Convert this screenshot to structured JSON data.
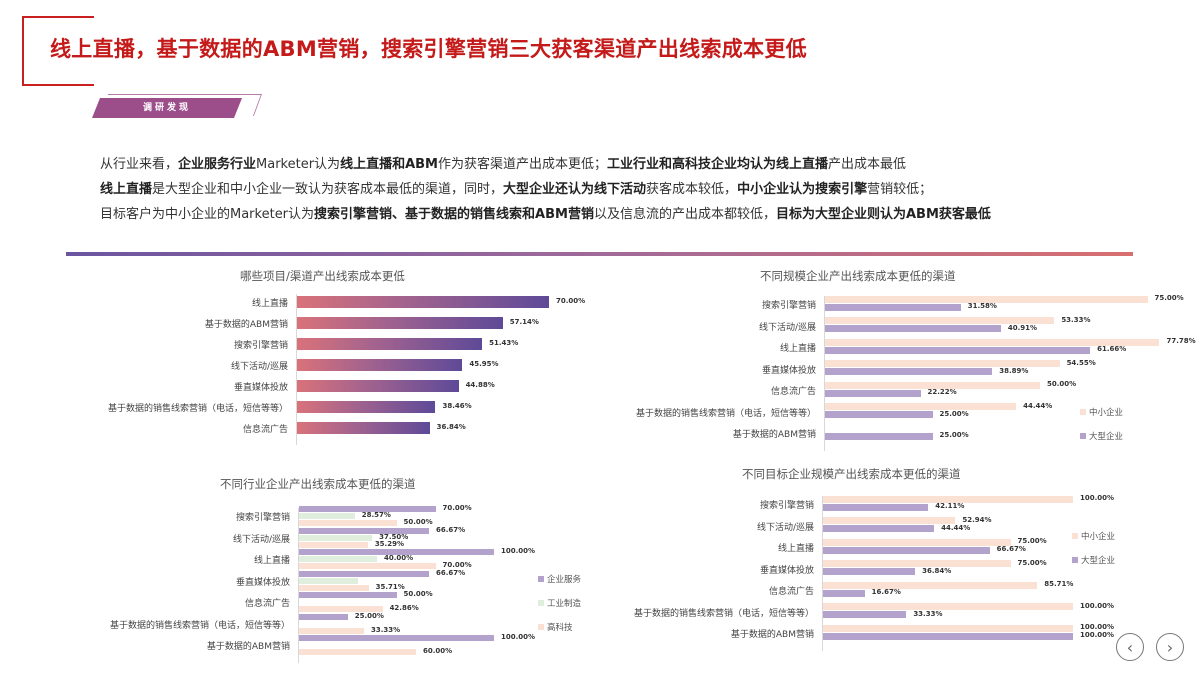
{
  "page": {
    "title": "线上直播，基于数据的ABM营销，搜索引擎营销三大获客渠道产出线索成本更低",
    "tag": "调研发现",
    "summary": [
      [
        {
          "t": "从行业来看，",
          "b": false
        },
        {
          "t": "企业服务行业",
          "b": true
        },
        {
          "t": "Marketer认为",
          "b": false
        },
        {
          "t": "线上直播和ABM",
          "b": true
        },
        {
          "t": "作为获客渠道产出成本更低；",
          "b": false
        },
        {
          "t": "工业行业和高科技企业均认为线上直播",
          "b": true
        },
        {
          "t": "产出成本最低",
          "b": false
        }
      ],
      [
        {
          "t": "线上直播",
          "b": true
        },
        {
          "t": "是大型企业和中小企业一致认为获客成本最低的渠道，同时，",
          "b": false
        },
        {
          "t": "大型企业还认为线下活动",
          "b": true
        },
        {
          "t": "获客成本较低，",
          "b": false
        },
        {
          "t": "中小企业认为搜索引擎",
          "b": true
        },
        {
          "t": "营销较低；",
          "b": false
        }
      ],
      [
        {
          "t": "目标客户为中小企业的Marketer认为",
          "b": false
        },
        {
          "t": "搜索引擎营销、基于数据的销售线索和ABM营销",
          "b": true
        },
        {
          "t": "以及信息流的产出成本都较低，",
          "b": false
        },
        {
          "t": "目标为大型企业则认为ABM获客最低",
          "b": true
        }
      ]
    ],
    "nav": {
      "prev": "‹",
      "next": "›"
    }
  },
  "colors": {
    "title_red": "#c41a1a",
    "tag_purple": "#9c4e8b",
    "gradient_start": "#d9727a",
    "gradient_end": "#5e4a98",
    "large_enterprise": "#b3a3cc",
    "sme": "#fbe0d4",
    "enterprise_service": "#b3a3cc",
    "industrial": "#dfeedd",
    "hightech": "#fbe0d4"
  },
  "chart_data": [
    {
      "id": "overall",
      "type": "bar",
      "orientation": "horizontal",
      "title": "哪些项目/渠道产出线索成本更低",
      "categories": [
        "线上直播",
        "基于数据的ABM营销",
        "搜索引擎营销",
        "线下活动/巡展",
        "垂直媒体投放",
        "基于数据的销售线索营销（电话，短信等等）",
        "信息流广告"
      ],
      "series": [
        {
          "name": "占比",
          "values": [
            70.0,
            57.14,
            51.43,
            45.95,
            44.88,
            38.46,
            36.84
          ],
          "labels": [
            "70.00%",
            "57.14%",
            "51.43%",
            "45.95%",
            "44.88%",
            "38.46%",
            "36.84%"
          ]
        }
      ],
      "xlim": [
        0,
        100
      ],
      "grid": false,
      "legend": null
    },
    {
      "id": "by_size",
      "type": "bar",
      "orientation": "horizontal",
      "title": "不同规模企业产出线索成本更低的渠道",
      "categories": [
        "搜索引擎营销",
        "线下活动/巡展",
        "线上直播",
        "垂直媒体投放",
        "信息流广告",
        "基于数据的销售线索营销（电话，短信等等）",
        "基于数据的ABM营销"
      ],
      "series": [
        {
          "name": "中小企业",
          "values": [
            75.0,
            53.33,
            77.78,
            54.55,
            50.0,
            44.44,
            null
          ],
          "labels": [
            "75.00%",
            "53.33%",
            "77.78%",
            "54.55%",
            "50.00%",
            "44.44%",
            ""
          ]
        },
        {
          "name": "大型企业",
          "values": [
            31.58,
            40.91,
            61.66,
            38.89,
            22.22,
            25.0,
            25.0
          ],
          "labels": [
            "31.58%",
            "40.91%",
            "61.66%",
            "38.89%",
            "22.22%",
            "25.00%",
            "25.00%"
          ]
        }
      ],
      "xlim": [
        0,
        100
      ],
      "grid": false,
      "legend": "right"
    },
    {
      "id": "by_industry",
      "type": "bar",
      "orientation": "horizontal",
      "title": "不同行业企业产出线索成本更低的渠道",
      "categories": [
        "搜索引擎营销",
        "线下活动/巡展",
        "线上直播",
        "垂直媒体投放",
        "信息流广告",
        "基于数据的销售线索营销（电话，短信等等）",
        "基于数据的ABM营销"
      ],
      "series": [
        {
          "name": "企业服务",
          "values": [
            70.0,
            66.67,
            100.0,
            66.67,
            50.0,
            25.0,
            100.0
          ],
          "labels": [
            "70.00%",
            "66.67%",
            "100.00%",
            "66.67%",
            "50.00%",
            "25.00%",
            "100.00%"
          ]
        },
        {
          "name": "工业制造",
          "values": [
            28.57,
            37.5,
            40.0,
            30.0,
            null,
            null,
            null
          ],
          "labels": [
            "28.57%",
            "37.50%",
            "40.00%",
            "",
            "",
            "",
            ""
          ]
        },
        {
          "name": "高科技",
          "values": [
            50.0,
            35.29,
            70.0,
            35.71,
            42.86,
            33.33,
            60.0
          ],
          "labels": [
            "50.00%",
            "35.29%",
            "70.00%",
            "35.71%",
            "42.86%",
            "33.33%",
            "60.00%"
          ]
        }
      ],
      "xlim": [
        0,
        100
      ],
      "grid": false,
      "legend": "right"
    },
    {
      "id": "by_target_size",
      "type": "bar",
      "orientation": "horizontal",
      "title": "不同目标企业规模产出线索成本更低的渠道",
      "categories": [
        "搜索引擎营销",
        "线下活动/巡展",
        "线上直播",
        "垂直媒体投放",
        "信息流广告",
        "基于数据的销售线索营销（电话，短信等等）",
        "基于数据的ABM营销"
      ],
      "series": [
        {
          "name": "中小企业",
          "values": [
            100.0,
            52.94,
            75.0,
            75.0,
            85.71,
            100.0,
            100.0
          ],
          "labels": [
            "100.00%",
            "52.94%",
            "75.00%",
            "75.00%",
            "85.71%",
            "100.00%",
            "100.00%"
          ]
        },
        {
          "name": "大型企业",
          "values": [
            42.11,
            44.44,
            66.67,
            36.84,
            16.67,
            33.33,
            100.0
          ],
          "labels": [
            "42.11%",
            "44.44%",
            "66.67%",
            "36.84%",
            "16.67%",
            "33.33%",
            "100.00%"
          ]
        }
      ],
      "xlim": [
        0,
        100
      ],
      "grid": false,
      "legend": "right"
    }
  ]
}
